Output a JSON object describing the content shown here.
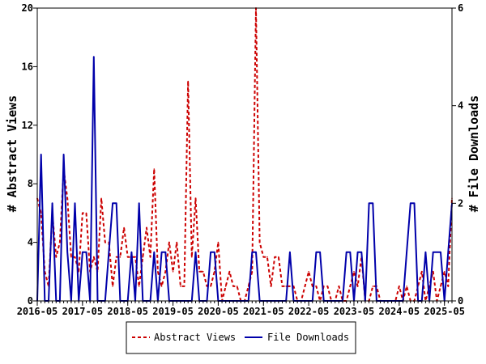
{
  "chart_data": {
    "type": "line",
    "title": "",
    "xlabel": "",
    "ylabel_left": "# Abstract Views",
    "ylabel_right": "# File Downloads",
    "x_tick_labels": [
      "2016-05",
      "2017-05",
      "2018-05",
      "2019-05",
      "2020-05",
      "2021-05",
      "2022-05",
      "2023-05",
      "2024-05",
      "2025-05"
    ],
    "xlim": [
      "2016-05",
      "2025-07"
    ],
    "ylim_left": [
      0,
      20
    ],
    "ylim_right": [
      0,
      6
    ],
    "y_ticks_left": [
      0,
      4,
      8,
      12,
      16,
      20
    ],
    "y_ticks_right": [
      0,
      2,
      4,
      6
    ],
    "grid": false,
    "legend_position": "bottom-center",
    "series": [
      {
        "name": "Abstract Views",
        "axis": "left",
        "color": "#cc0000",
        "style": "dashed",
        "points": [
          [
            "2016-05",
            7
          ],
          [
            "2016-06",
            6
          ],
          [
            "2016-07",
            2
          ],
          [
            "2016-08",
            1
          ],
          [
            "2016-09",
            6
          ],
          [
            "2016-10",
            3
          ],
          [
            "2016-11",
            4
          ],
          [
            "2016-12",
            9
          ],
          [
            "2017-01",
            7
          ],
          [
            "2017-02",
            3
          ],
          [
            "2017-03",
            3
          ],
          [
            "2017-04",
            2
          ],
          [
            "2017-05",
            6
          ],
          [
            "2017-06",
            6
          ],
          [
            "2017-07",
            2
          ],
          [
            "2017-08",
            3
          ],
          [
            "2017-09",
            2
          ],
          [
            "2017-10",
            7
          ],
          [
            "2017-11",
            4
          ],
          [
            "2017-12",
            4
          ],
          [
            "2018-01",
            1
          ],
          [
            "2018-02",
            3
          ],
          [
            "2018-03",
            3
          ],
          [
            "2018-04",
            5
          ],
          [
            "2018-05",
            3
          ],
          [
            "2018-06",
            3
          ],
          [
            "2018-07",
            3
          ],
          [
            "2018-08",
            1
          ],
          [
            "2018-09",
            3
          ],
          [
            "2018-10",
            5
          ],
          [
            "2018-11",
            3
          ],
          [
            "2018-12",
            9
          ],
          [
            "2019-01",
            2
          ],
          [
            "2019-02",
            1
          ],
          [
            "2019-03",
            2
          ],
          [
            "2019-04",
            4
          ],
          [
            "2019-05",
            2
          ],
          [
            "2019-06",
            4
          ],
          [
            "2019-07",
            1
          ],
          [
            "2019-08",
            1
          ],
          [
            "2019-09",
            15
          ],
          [
            "2019-10",
            3
          ],
          [
            "2019-11",
            7
          ],
          [
            "2019-12",
            2
          ],
          [
            "2020-01",
            2
          ],
          [
            "2020-02",
            1
          ],
          [
            "2020-03",
            1
          ],
          [
            "2020-04",
            2
          ],
          [
            "2020-05",
            4
          ],
          [
            "2020-06",
            0
          ],
          [
            "2020-07",
            1
          ],
          [
            "2020-08",
            2
          ],
          [
            "2020-09",
            1
          ],
          [
            "2020-10",
            1
          ],
          [
            "2020-11",
            0
          ],
          [
            "2020-12",
            0
          ],
          [
            "2021-01",
            1
          ],
          [
            "2021-02",
            2
          ],
          [
            "2021-03",
            20
          ],
          [
            "2021-04",
            4
          ],
          [
            "2021-05",
            3
          ],
          [
            "2021-06",
            3
          ],
          [
            "2021-07",
            1
          ],
          [
            "2021-08",
            3
          ],
          [
            "2021-09",
            3
          ],
          [
            "2021-10",
            1
          ],
          [
            "2021-11",
            1
          ],
          [
            "2021-12",
            1
          ],
          [
            "2022-01",
            1
          ],
          [
            "2022-02",
            0
          ],
          [
            "2022-03",
            0
          ],
          [
            "2022-04",
            1
          ],
          [
            "2022-05",
            2
          ],
          [
            "2022-06",
            1
          ],
          [
            "2022-07",
            1
          ],
          [
            "2022-08",
            0
          ],
          [
            "2022-09",
            1
          ],
          [
            "2022-10",
            1
          ],
          [
            "2022-11",
            0
          ],
          [
            "2022-12",
            0
          ],
          [
            "2023-01",
            1
          ],
          [
            "2023-02",
            0
          ],
          [
            "2023-03",
            0
          ],
          [
            "2023-04",
            1
          ],
          [
            "2023-05",
            2
          ],
          [
            "2023-06",
            1
          ],
          [
            "2023-07",
            3
          ],
          [
            "2023-08",
            0
          ],
          [
            "2023-09",
            0
          ],
          [
            "2023-10",
            1
          ],
          [
            "2023-11",
            1
          ],
          [
            "2023-12",
            0
          ],
          [
            "2024-01",
            0
          ],
          [
            "2024-02",
            0
          ],
          [
            "2024-03",
            0
          ],
          [
            "2024-04",
            0
          ],
          [
            "2024-05",
            1
          ],
          [
            "2024-06",
            0
          ],
          [
            "2024-07",
            1
          ],
          [
            "2024-08",
            0
          ],
          [
            "2024-09",
            0
          ],
          [
            "2024-10",
            1
          ],
          [
            "2024-11",
            2
          ],
          [
            "2024-12",
            0
          ],
          [
            "2025-01",
            1
          ],
          [
            "2025-02",
            2
          ],
          [
            "2025-03",
            0
          ],
          [
            "2025-04",
            1
          ],
          [
            "2025-05",
            2
          ],
          [
            "2025-06",
            1
          ],
          [
            "2025-07",
            7
          ]
        ]
      },
      {
        "name": "File Downloads",
        "axis": "right",
        "color": "#0000aa",
        "style": "solid",
        "points": [
          [
            "2016-05",
            0
          ],
          [
            "2016-06",
            3
          ],
          [
            "2016-07",
            0
          ],
          [
            "2016-08",
            0
          ],
          [
            "2016-09",
            2
          ],
          [
            "2016-10",
            0
          ],
          [
            "2016-11",
            0
          ],
          [
            "2016-12",
            3
          ],
          [
            "2017-01",
            1
          ],
          [
            "2017-02",
            0
          ],
          [
            "2017-03",
            2
          ],
          [
            "2017-04",
            0
          ],
          [
            "2017-05",
            1
          ],
          [
            "2017-06",
            1
          ],
          [
            "2017-07",
            0
          ],
          [
            "2017-08",
            5
          ],
          [
            "2017-09",
            0
          ],
          [
            "2017-10",
            0
          ],
          [
            "2017-11",
            0
          ],
          [
            "2017-12",
            1
          ],
          [
            "2018-01",
            2
          ],
          [
            "2018-02",
            2
          ],
          [
            "2018-03",
            0
          ],
          [
            "2018-04",
            0
          ],
          [
            "2018-05",
            0
          ],
          [
            "2018-06",
            1
          ],
          [
            "2018-07",
            0
          ],
          [
            "2018-08",
            2
          ],
          [
            "2018-09",
            0
          ],
          [
            "2018-10",
            0
          ],
          [
            "2018-11",
            0
          ],
          [
            "2018-12",
            1
          ],
          [
            "2019-01",
            0
          ],
          [
            "2019-02",
            1
          ],
          [
            "2019-03",
            1
          ],
          [
            "2019-04",
            0
          ],
          [
            "2019-05",
            0
          ],
          [
            "2019-06",
            0
          ],
          [
            "2019-07",
            0
          ],
          [
            "2019-08",
            0
          ],
          [
            "2019-09",
            0
          ],
          [
            "2019-10",
            0
          ],
          [
            "2019-11",
            1
          ],
          [
            "2019-12",
            0
          ],
          [
            "2020-01",
            0
          ],
          [
            "2020-02",
            0
          ],
          [
            "2020-03",
            1
          ],
          [
            "2020-04",
            1
          ],
          [
            "2020-05",
            0
          ],
          [
            "2020-06",
            0
          ],
          [
            "2020-07",
            0
          ],
          [
            "2020-08",
            0
          ],
          [
            "2020-09",
            0
          ],
          [
            "2020-10",
            0
          ],
          [
            "2020-11",
            0
          ],
          [
            "2020-12",
            0
          ],
          [
            "2021-01",
            0
          ],
          [
            "2021-02",
            1
          ],
          [
            "2021-03",
            1
          ],
          [
            "2021-04",
            0
          ],
          [
            "2021-05",
            0
          ],
          [
            "2021-06",
            0
          ],
          [
            "2021-07",
            0
          ],
          [
            "2021-08",
            0
          ],
          [
            "2021-09",
            0
          ],
          [
            "2021-10",
            0
          ],
          [
            "2021-11",
            0
          ],
          [
            "2021-12",
            1
          ],
          [
            "2022-01",
            0
          ],
          [
            "2022-02",
            0
          ],
          [
            "2022-03",
            0
          ],
          [
            "2022-04",
            0
          ],
          [
            "2022-05",
            0
          ],
          [
            "2022-06",
            0
          ],
          [
            "2022-07",
            1
          ],
          [
            "2022-08",
            1
          ],
          [
            "2022-09",
            0
          ],
          [
            "2022-10",
            0
          ],
          [
            "2022-11",
            0
          ],
          [
            "2022-12",
            0
          ],
          [
            "2023-01",
            0
          ],
          [
            "2023-02",
            0
          ],
          [
            "2023-03",
            1
          ],
          [
            "2023-04",
            1
          ],
          [
            "2023-05",
            0
          ],
          [
            "2023-06",
            1
          ],
          [
            "2023-07",
            1
          ],
          [
            "2023-08",
            0
          ],
          [
            "2023-09",
            2
          ],
          [
            "2023-10",
            2
          ],
          [
            "2023-11",
            0
          ],
          [
            "2023-12",
            0
          ],
          [
            "2024-01",
            0
          ],
          [
            "2024-02",
            0
          ],
          [
            "2024-03",
            0
          ],
          [
            "2024-04",
            0
          ],
          [
            "2024-05",
            0
          ],
          [
            "2024-06",
            0
          ],
          [
            "2024-07",
            1
          ],
          [
            "2024-08",
            2
          ],
          [
            "2024-09",
            2
          ],
          [
            "2024-10",
            0
          ],
          [
            "2024-11",
            0
          ],
          [
            "2024-12",
            1
          ],
          [
            "2025-01",
            0
          ],
          [
            "2025-02",
            1
          ],
          [
            "2025-03",
            1
          ],
          [
            "2025-04",
            1
          ],
          [
            "2025-05",
            0
          ],
          [
            "2025-06",
            1
          ],
          [
            "2025-07",
            2
          ]
        ]
      }
    ]
  }
}
